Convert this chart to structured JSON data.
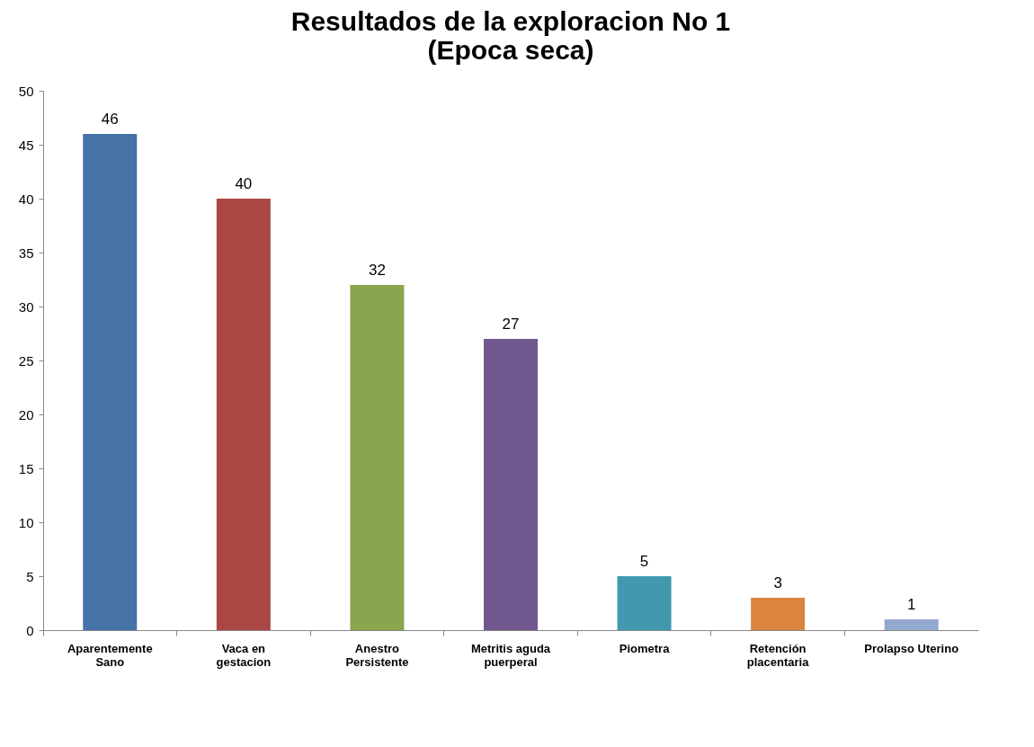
{
  "chart_data": {
    "type": "bar",
    "title": "Resultados de la exploracion No 1\n(Epoca seca)",
    "categories": [
      "Aparentemente\nSano",
      "Vaca en\ngestacion",
      "Anestro\nPersistente",
      "Metritis aguda\npuerperal",
      "Piometra",
      "Retención\nplacentaria",
      "Prolapso Uterino"
    ],
    "values": [
      46,
      40,
      32,
      27,
      5,
      3,
      1
    ],
    "colors": [
      "#4572a7",
      "#aa4643",
      "#89a54e",
      "#71588f",
      "#4198af",
      "#db843d",
      "#93a9cf"
    ],
    "ylim": [
      0,
      50
    ],
    "yticks": [
      0,
      5,
      10,
      15,
      20,
      25,
      30,
      35,
      40,
      45,
      50
    ],
    "grid": false,
    "data_labels": true
  }
}
